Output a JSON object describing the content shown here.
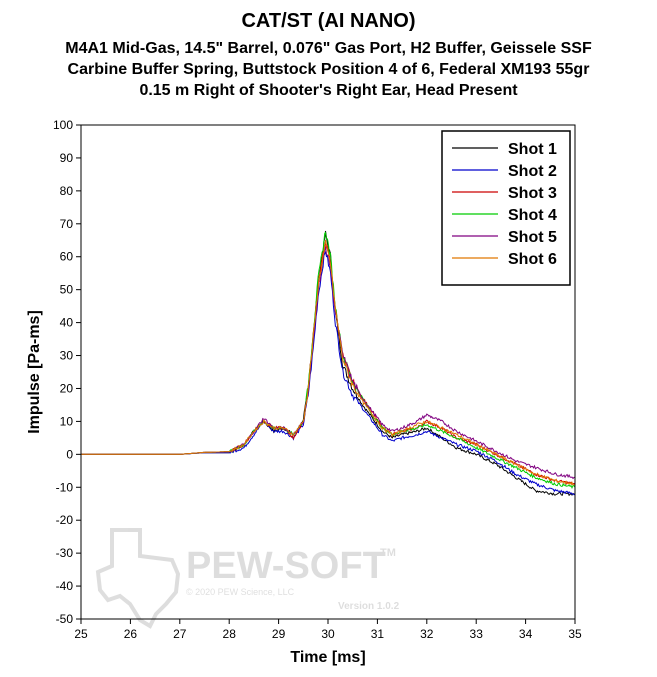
{
  "chart_data": {
    "type": "line",
    "title": "CAT/ST (AI NANO)",
    "subtitle_lines": [
      "M4A1 Mid-Gas, 14.5\" Barrel, 0.076\" Gas Port, H2 Buffer, Geissele SSF",
      "Carbine Buffer Spring, Buttstock Position 4 of 6, Federal XM193 55gr",
      "0.15 m Right of Shooter's Right Ear, Head Present"
    ],
    "xlabel": "Time [ms]",
    "ylabel": "Impulse [Pa-ms]",
    "xlim": [
      25,
      35
    ],
    "ylim": [
      -50,
      100
    ],
    "xticks": [
      25,
      26,
      27,
      28,
      29,
      30,
      31,
      32,
      33,
      34,
      35
    ],
    "yticks": [
      -50,
      -40,
      -30,
      -20,
      -10,
      0,
      10,
      20,
      30,
      40,
      50,
      60,
      70,
      80,
      90,
      100
    ],
    "legend_position": "top-right",
    "series": [
      {
        "name": "Shot 1",
        "color": "#000000",
        "points": [
          [
            25,
            0
          ],
          [
            26.5,
            0
          ],
          [
            27,
            0
          ],
          [
            27.5,
            0.5
          ],
          [
            28,
            0.5
          ],
          [
            28.3,
            3
          ],
          [
            28.5,
            7
          ],
          [
            28.7,
            10
          ],
          [
            28.9,
            7
          ],
          [
            29.1,
            8
          ],
          [
            29.3,
            6
          ],
          [
            29.5,
            10
          ],
          [
            29.6,
            20
          ],
          [
            29.7,
            35
          ],
          [
            29.8,
            52
          ],
          [
            29.9,
            62
          ],
          [
            29.95,
            67
          ],
          [
            30.05,
            60
          ],
          [
            30.15,
            43
          ],
          [
            30.3,
            27
          ],
          [
            30.5,
            20
          ],
          [
            30.7,
            15
          ],
          [
            30.9,
            11
          ],
          [
            31.1,
            7
          ],
          [
            31.3,
            5
          ],
          [
            31.5,
            6
          ],
          [
            31.8,
            7
          ],
          [
            32.0,
            8
          ],
          [
            32.3,
            5
          ],
          [
            32.6,
            2
          ],
          [
            33.0,
            0
          ],
          [
            33.4,
            -3
          ],
          [
            33.8,
            -7
          ],
          [
            34.2,
            -11
          ],
          [
            34.6,
            -12
          ],
          [
            35,
            -12
          ]
        ]
      },
      {
        "name": "Shot 2",
        "color": "#0000cc",
        "points": [
          [
            25,
            0
          ],
          [
            26.5,
            0
          ],
          [
            27,
            0
          ],
          [
            27.5,
            0.5
          ],
          [
            28,
            0.5
          ],
          [
            28.3,
            2
          ],
          [
            28.5,
            6
          ],
          [
            28.7,
            10
          ],
          [
            28.9,
            7
          ],
          [
            29.1,
            7
          ],
          [
            29.3,
            5
          ],
          [
            29.5,
            9
          ],
          [
            29.6,
            18
          ],
          [
            29.7,
            32
          ],
          [
            29.8,
            48
          ],
          [
            29.9,
            58
          ],
          [
            29.95,
            62
          ],
          [
            30.05,
            55
          ],
          [
            30.15,
            40
          ],
          [
            30.3,
            25
          ],
          [
            30.5,
            18
          ],
          [
            30.7,
            14
          ],
          [
            30.9,
            10
          ],
          [
            31.1,
            6
          ],
          [
            31.3,
            4
          ],
          [
            31.5,
            5
          ],
          [
            31.8,
            6
          ],
          [
            32.0,
            7
          ],
          [
            32.3,
            5
          ],
          [
            32.6,
            3
          ],
          [
            33.0,
            1
          ],
          [
            33.4,
            -2
          ],
          [
            33.8,
            -6
          ],
          [
            34.2,
            -9
          ],
          [
            34.6,
            -11
          ],
          [
            35,
            -12
          ]
        ]
      },
      {
        "name": "Shot 3",
        "color": "#cc0000",
        "points": [
          [
            25,
            0
          ],
          [
            26.5,
            0
          ],
          [
            27,
            0
          ],
          [
            27.5,
            0.6
          ],
          [
            28,
            0.8
          ],
          [
            28.3,
            3
          ],
          [
            28.5,
            7
          ],
          [
            28.7,
            10
          ],
          [
            28.9,
            8
          ],
          [
            29.1,
            8
          ],
          [
            29.3,
            5
          ],
          [
            29.5,
            10
          ],
          [
            29.6,
            20
          ],
          [
            29.7,
            36
          ],
          [
            29.8,
            52
          ],
          [
            29.9,
            61
          ],
          [
            29.95,
            65
          ],
          [
            30.05,
            58
          ],
          [
            30.15,
            44
          ],
          [
            30.3,
            30
          ],
          [
            30.5,
            22
          ],
          [
            30.7,
            17
          ],
          [
            30.9,
            13
          ],
          [
            31.1,
            8
          ],
          [
            31.3,
            6
          ],
          [
            31.5,
            7
          ],
          [
            31.8,
            8
          ],
          [
            32.0,
            10
          ],
          [
            32.3,
            8
          ],
          [
            32.6,
            5
          ],
          [
            33.0,
            3
          ],
          [
            33.4,
            0
          ],
          [
            33.8,
            -3
          ],
          [
            34.2,
            -6
          ],
          [
            34.6,
            -8
          ],
          [
            35,
            -9
          ]
        ]
      },
      {
        "name": "Shot 4",
        "color": "#00cc00",
        "points": [
          [
            25,
            0
          ],
          [
            26.5,
            0
          ],
          [
            27,
            0
          ],
          [
            27.5,
            0.6
          ],
          [
            28,
            0.8
          ],
          [
            28.3,
            3
          ],
          [
            28.5,
            7
          ],
          [
            28.7,
            10
          ],
          [
            28.9,
            8
          ],
          [
            29.1,
            8
          ],
          [
            29.3,
            6
          ],
          [
            29.5,
            10
          ],
          [
            29.6,
            21
          ],
          [
            29.7,
            37
          ],
          [
            29.8,
            53
          ],
          [
            29.9,
            63
          ],
          [
            29.95,
            68
          ],
          [
            30.05,
            60
          ],
          [
            30.15,
            45
          ],
          [
            30.3,
            30
          ],
          [
            30.5,
            22
          ],
          [
            30.7,
            17
          ],
          [
            30.9,
            12
          ],
          [
            31.1,
            8
          ],
          [
            31.3,
            6
          ],
          [
            31.5,
            7
          ],
          [
            31.8,
            8
          ],
          [
            32.0,
            9
          ],
          [
            32.3,
            7
          ],
          [
            32.6,
            5
          ],
          [
            33.0,
            2
          ],
          [
            33.4,
            -1
          ],
          [
            33.8,
            -4
          ],
          [
            34.2,
            -7
          ],
          [
            34.6,
            -9
          ],
          [
            35,
            -10
          ]
        ]
      },
      {
        "name": "Shot 5",
        "color": "#800080",
        "points": [
          [
            25,
            0
          ],
          [
            26.5,
            0
          ],
          [
            27,
            0
          ],
          [
            27.5,
            0.6
          ],
          [
            28,
            0.8
          ],
          [
            28.3,
            3
          ],
          [
            28.5,
            7
          ],
          [
            28.7,
            11
          ],
          [
            28.9,
            8
          ],
          [
            29.1,
            8
          ],
          [
            29.3,
            6
          ],
          [
            29.5,
            10
          ],
          [
            29.6,
            19
          ],
          [
            29.7,
            34
          ],
          [
            29.8,
            50
          ],
          [
            29.9,
            59
          ],
          [
            29.95,
            63
          ],
          [
            30.05,
            57
          ],
          [
            30.15,
            43
          ],
          [
            30.3,
            30
          ],
          [
            30.5,
            22
          ],
          [
            30.7,
            17
          ],
          [
            30.9,
            13
          ],
          [
            31.1,
            9
          ],
          [
            31.3,
            7
          ],
          [
            31.5,
            8
          ],
          [
            31.8,
            10
          ],
          [
            32.0,
            12
          ],
          [
            32.3,
            10
          ],
          [
            32.6,
            7
          ],
          [
            33.0,
            4
          ],
          [
            33.4,
            1
          ],
          [
            33.8,
            -2
          ],
          [
            34.2,
            -4
          ],
          [
            34.6,
            -6
          ],
          [
            35,
            -7
          ]
        ]
      },
      {
        "name": "Shot 6",
        "color": "#e07800",
        "points": [
          [
            25,
            0
          ],
          [
            26.5,
            0
          ],
          [
            27,
            0
          ],
          [
            27.5,
            0.6
          ],
          [
            28,
            0.8
          ],
          [
            28.3,
            3
          ],
          [
            28.5,
            7
          ],
          [
            28.7,
            10
          ],
          [
            28.9,
            8
          ],
          [
            29.1,
            8
          ],
          [
            29.3,
            6
          ],
          [
            29.5,
            10
          ],
          [
            29.6,
            20
          ],
          [
            29.7,
            35
          ],
          [
            29.8,
            51
          ],
          [
            29.9,
            60
          ],
          [
            29.95,
            64
          ],
          [
            30.05,
            58
          ],
          [
            30.15,
            44
          ],
          [
            30.3,
            29
          ],
          [
            30.5,
            21
          ],
          [
            30.7,
            16
          ],
          [
            30.9,
            12
          ],
          [
            31.1,
            8
          ],
          [
            31.3,
            6
          ],
          [
            31.5,
            7
          ],
          [
            31.8,
            9
          ],
          [
            32.0,
            10
          ],
          [
            32.3,
            8
          ],
          [
            32.6,
            6
          ],
          [
            33.0,
            3
          ],
          [
            33.4,
            0
          ],
          [
            33.8,
            -3
          ],
          [
            34.2,
            -6
          ],
          [
            34.6,
            -8
          ],
          [
            35,
            -9
          ]
        ]
      }
    ]
  },
  "watermark": {
    "brand": "PEW-SOFT",
    "trademark": "TM",
    "copyright": "© 2020 PEW Science, LLC",
    "version": "Version 1.0.2"
  }
}
